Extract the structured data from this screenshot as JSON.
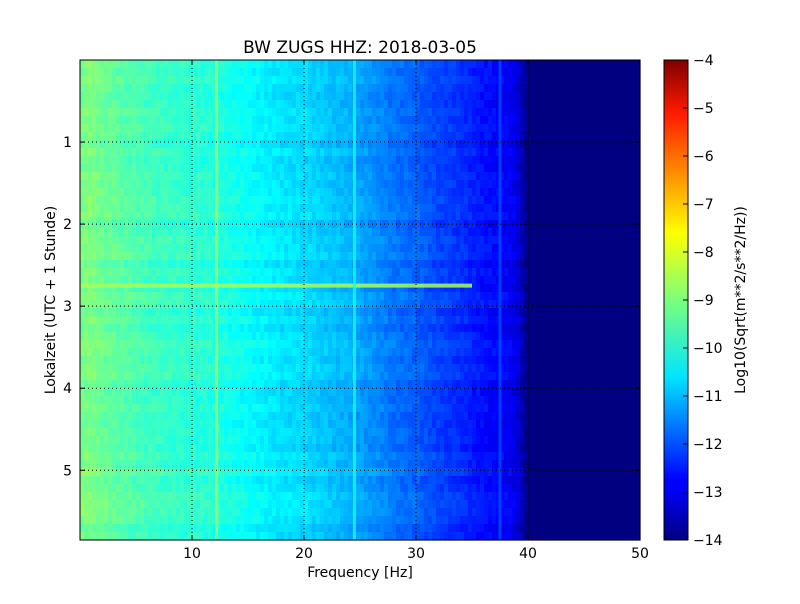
{
  "chart_data": {
    "type": "heatmap",
    "title": "BW ZUGS HHZ: 2018-03-05",
    "xlabel": "Frequency [Hz]",
    "ylabel": "Lokalzeit (UTC + 1 Stunde)",
    "xlim": [
      0,
      50
    ],
    "ylim": [
      5.85,
      0
    ],
    "x_ticks": [
      10,
      20,
      30,
      40,
      50
    ],
    "x_tick_labels": [
      "10",
      "20",
      "30",
      "40",
      "50"
    ],
    "y_ticks": [
      1,
      2,
      3,
      4,
      5
    ],
    "y_tick_labels": [
      "1",
      "2",
      "3",
      "4",
      "5"
    ],
    "grid": true,
    "colormap": "jet",
    "colorbar": {
      "label": "Log10(Sqrt(m**2/s**2/Hz))",
      "range": [
        -14,
        -4
      ],
      "ticks": [
        -4,
        -5,
        -6,
        -7,
        -8,
        -9,
        -10,
        -11,
        -12,
        -13,
        -14
      ],
      "tick_labels": [
        "−4",
        "−5",
        "−6",
        "−7",
        "−8",
        "−9",
        "−10",
        "−11",
        "−12",
        "−13",
        "−14"
      ]
    },
    "frequency_profile": {
      "frequency_hz": [
        0,
        1,
        2,
        4,
        6,
        8,
        10,
        12,
        14,
        16,
        18,
        20,
        22,
        24,
        26,
        28,
        30,
        32,
        34,
        36,
        38,
        39,
        40,
        42,
        45,
        50
      ],
      "level": [
        -9.1,
        -9.0,
        -9.2,
        -9.4,
        -9.6,
        -9.7,
        -9.8,
        -9.9,
        -10.1,
        -10.3,
        -10.5,
        -10.6,
        -10.8,
        -11.0,
        -11.3,
        -11.6,
        -11.8,
        -12.1,
        -12.3,
        -12.6,
        -12.8,
        -13.0,
        -14.0,
        -14.0,
        -14.0,
        -14.0
      ]
    },
    "notable_features": [
      {
        "type": "horizontal_band",
        "time_h": 2.75,
        "level": -8.6
      },
      {
        "type": "vertical_line",
        "frequency_hz": 12.2,
        "level": -8.7
      },
      {
        "type": "vertical_line",
        "frequency_hz": 24.5,
        "level": -10.1
      },
      {
        "type": "vertical_line",
        "frequency_hz": 37.5,
        "level": -12.0
      }
    ]
  }
}
